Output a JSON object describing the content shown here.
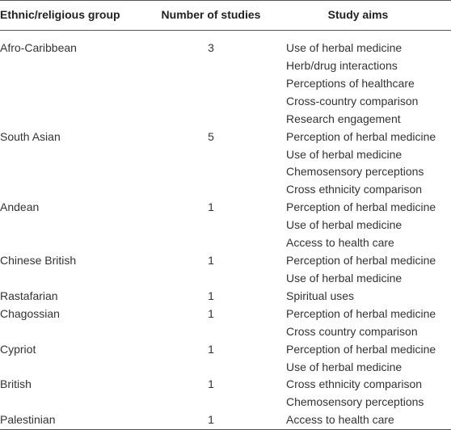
{
  "table": {
    "header": [
      "Ethnic/religious group",
      "Number of studies",
      "Study aims"
    ],
    "rows": [
      [
        "Afro-Caribbean",
        3,
        [
          "Use of herbal medicine",
          "Herb/drug interactions",
          "Perceptions of healthcare",
          "Cross-country comparison",
          "Research engagement"
        ]
      ],
      [
        "South Asian",
        5,
        [
          "Perception of herbal medicine",
          "Use of herbal medicine",
          "Chemosensory perceptions",
          "Cross ethnicity comparison"
        ]
      ],
      [
        "Andean",
        1,
        [
          "Perception of herbal medicine",
          "Use of herbal medicine",
          "Access to health care"
        ]
      ],
      [
        "Chinese British",
        1,
        [
          "Perception of herbal medicine",
          "Use of herbal medicine"
        ]
      ],
      [
        "Rastafarian",
        1,
        [
          "Spiritual uses"
        ]
      ],
      [
        "Chagossian",
        1,
        [
          "Perception of herbal medicine",
          "Cross country comparison"
        ]
      ],
      [
        "Cypriot",
        1,
        [
          "Perception of herbal medicine",
          "Use of herbal medicine"
        ]
      ],
      [
        "British",
        1,
        [
          "Cross ethnicity comparison",
          "Chemosensory perceptions"
        ]
      ],
      [
        "Palestinian",
        1,
        [
          "Access to health care"
        ]
      ]
    ]
  }
}
